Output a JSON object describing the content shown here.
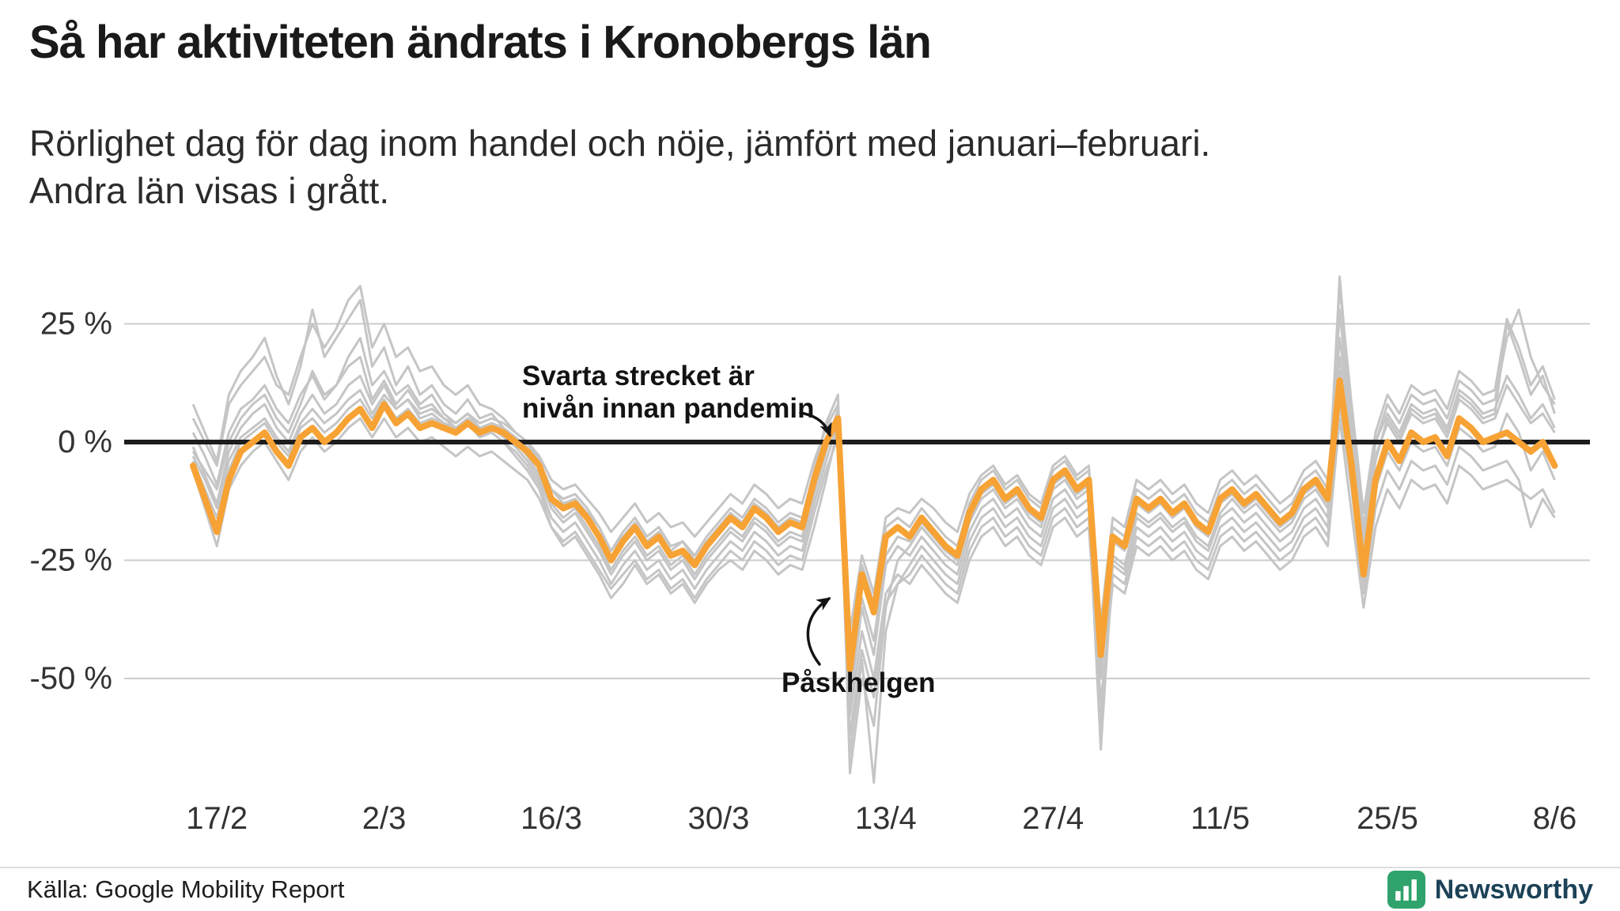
{
  "footer": {
    "source": "Källa: Google Mobility Report",
    "brand": "Newsworthy",
    "brand_icon_color": "#2fa36b",
    "brand_text_color": "#1c4257"
  },
  "chart_data": {
    "type": "line",
    "title": "Så har aktiviteten ändrats i Kronobergs län",
    "subtitle": "Rörlighet dag för dag inom handel och nöje, jämfört med januari–februari.\nAndra län visas i grått.",
    "unit": "%",
    "ylim": [
      -75,
      35
    ],
    "grid": "horizontal-only",
    "legend": "none",
    "annotations": {
      "black_line": "Svarta strecket är\nnivån innan pandemin",
      "easter": "Påskhelgen"
    },
    "colors": {
      "grid": "#cccccc",
      "baseline": "#1d1d1d"
    },
    "baseline": {
      "value": 0
    },
    "y_ticks": [
      {
        "label": "25 %",
        "value": 25
      },
      {
        "label": "0 %",
        "value": 0
      },
      {
        "label": "-25 %",
        "value": -25
      },
      {
        "label": "-50 %",
        "value": -50
      }
    ],
    "x_ticks": [
      {
        "label": "17/2",
        "index": 2
      },
      {
        "label": "2/3",
        "index": 16
      },
      {
        "label": "16/3",
        "index": 30
      },
      {
        "label": "30/3",
        "index": 44
      },
      {
        "label": "13/4",
        "index": 58
      },
      {
        "label": "27/4",
        "index": 72
      },
      {
        "label": "11/5",
        "index": 86
      },
      {
        "label": "25/5",
        "index": 100
      },
      {
        "label": "8/6",
        "index": 114
      }
    ],
    "highlight_series": {
      "name": "Kronobergs län",
      "color": "#f7a234",
      "values": [
        -5,
        -12,
        -19,
        -8,
        -2,
        0,
        2,
        -2,
        -5,
        1,
        3,
        0,
        2,
        5,
        7,
        3,
        8,
        4,
        6,
        3,
        4,
        3,
        2,
        4,
        2,
        3,
        2,
        0,
        -2,
        -5,
        -12,
        -14,
        -13,
        -16,
        -20,
        -25,
        -21,
        -18,
        -22,
        -20,
        -24,
        -23,
        -26,
        -22,
        -19,
        -16,
        -18,
        -14,
        -16,
        -19,
        -17,
        -18,
        -8,
        0,
        5,
        -48,
        -28,
        -36,
        -20,
        -18,
        -20,
        -16,
        -19,
        -22,
        -24,
        -15,
        -10,
        -8,
        -12,
        -10,
        -14,
        -16,
        -8,
        -6,
        -10,
        -8,
        -45,
        -20,
        -22,
        -12,
        -14,
        -12,
        -15,
        -13,
        -17,
        -19,
        -12,
        -10,
        -13,
        -11,
        -14,
        -17,
        -15,
        -10,
        -8,
        -12,
        13,
        -5,
        -28,
        -8,
        0,
        -4,
        2,
        0,
        1,
        -3,
        5,
        3,
        0,
        1,
        2,
        0,
        -2,
        0,
        -5
      ]
    },
    "background_series": {
      "name": "Andra län (visas i grått)",
      "color": "#c5c5c5",
      "series": [
        [
          -2,
          -6,
          -10,
          0,
          5,
          8,
          10,
          5,
          2,
          8,
          15,
          10,
          12,
          18,
          22,
          12,
          15,
          10,
          12,
          8,
          10,
          6,
          4,
          6,
          3,
          2,
          0,
          -3,
          -6,
          -10,
          -18,
          -22,
          -20,
          -24,
          -28,
          -33,
          -30,
          -26,
          -30,
          -28,
          -32,
          -30,
          -34,
          -30,
          -27,
          -25,
          -27,
          -23,
          -25,
          -28,
          -26,
          -27,
          -18,
          -8,
          3,
          -58,
          -40,
          -50,
          -32,
          -28,
          -30,
          -26,
          -29,
          -32,
          -34,
          -25,
          -20,
          -18,
          -22,
          -20,
          -24,
          -26,
          -18,
          -16,
          -20,
          -18,
          -55,
          -30,
          -32,
          -22,
          -24,
          -22,
          -25,
          -23,
          -27,
          -29,
          -22,
          -20,
          -23,
          -21,
          -24,
          -27,
          -25,
          -20,
          -18,
          -22,
          5,
          -15,
          -35,
          -18,
          -10,
          -14,
          -8,
          -10,
          -9,
          -13,
          -5,
          -7,
          -10,
          -9,
          -8,
          -10,
          -12,
          -10,
          -15
        ],
        [
          5,
          0,
          -5,
          8,
          12,
          15,
          18,
          12,
          10,
          18,
          25,
          20,
          24,
          30,
          33,
          20,
          25,
          18,
          20,
          15,
          16,
          12,
          10,
          12,
          8,
          7,
          5,
          2,
          0,
          -4,
          -10,
          -12,
          -11,
          -14,
          -18,
          -23,
          -19,
          -16,
          -20,
          -18,
          -22,
          -21,
          -24,
          -20,
          -17,
          -14,
          -16,
          -12,
          -14,
          -17,
          -15,
          -16,
          -6,
          4,
          10,
          -70,
          -50,
          -60,
          -35,
          -25,
          -22,
          -18,
          -21,
          -24,
          -26,
          -17,
          -12,
          -10,
          -14,
          -12,
          -16,
          -18,
          -10,
          -8,
          -12,
          -10,
          -60,
          -25,
          -27,
          -15,
          -17,
          -15,
          -18,
          -16,
          -20,
          -22,
          -15,
          -12,
          -15,
          -13,
          -16,
          -19,
          -17,
          -12,
          -10,
          -14,
          35,
          5,
          -20,
          0,
          8,
          4,
          10,
          8,
          9,
          5,
          13,
          11,
          8,
          9,
          22,
          28,
          18,
          12,
          8
        ],
        [
          -3,
          -8,
          -14,
          -4,
          1,
          3,
          5,
          1,
          -2,
          4,
          7,
          4,
          6,
          9,
          11,
          6,
          10,
          7,
          9,
          6,
          7,
          5,
          4,
          6,
          4,
          5,
          4,
          2,
          0,
          -3,
          -8,
          -10,
          -9,
          -12,
          -15,
          -19,
          -16,
          -13,
          -17,
          -15,
          -18,
          -17,
          -20,
          -17,
          -14,
          -11,
          -13,
          -9,
          -11,
          -14,
          -12,
          -13,
          -4,
          3,
          8,
          -40,
          -24,
          -32,
          -16,
          -14,
          -15,
          -12,
          -14,
          -17,
          -19,
          -11,
          -7,
          -5,
          -9,
          -7,
          -11,
          -13,
          -5,
          -3,
          -7,
          -5,
          -38,
          -16,
          -18,
          -8,
          -10,
          -8,
          -11,
          -9,
          -13,
          -15,
          -8,
          -6,
          -9,
          -7,
          -10,
          -13,
          -11,
          -6,
          -4,
          -8,
          18,
          0,
          -22,
          -3,
          4,
          0,
          6,
          4,
          5,
          1,
          9,
          7,
          4,
          5,
          12,
          8,
          4,
          6,
          2
        ],
        [
          8,
          2,
          -4,
          10,
          15,
          18,
          22,
          14,
          8,
          16,
          28,
          18,
          22,
          26,
          30,
          16,
          20,
          12,
          16,
          10,
          12,
          8,
          6,
          9,
          5,
          6,
          3,
          0,
          -3,
          -7,
          -13,
          -16,
          -14,
          -18,
          -22,
          -27,
          -23,
          -20,
          -24,
          -22,
          -26,
          -24,
          -28,
          -24,
          -21,
          -18,
          -20,
          -16,
          -18,
          -21,
          -19,
          -20,
          -10,
          -1,
          7,
          -55,
          -35,
          -45,
          -26,
          -22,
          -24,
          -20,
          -23,
          -26,
          -28,
          -19,
          -14,
          -12,
          -16,
          -14,
          -18,
          -20,
          -12,
          -10,
          -14,
          -12,
          -50,
          -24,
          -26,
          -16,
          -18,
          -16,
          -19,
          -17,
          -21,
          -23,
          -16,
          -14,
          -17,
          -15,
          -18,
          -21,
          -19,
          -14,
          -12,
          -16,
          28,
          2,
          -24,
          -4,
          5,
          1,
          7,
          5,
          6,
          2,
          10,
          8,
          5,
          6,
          25,
          18,
          10,
          14,
          6
        ],
        [
          -6,
          -14,
          -22,
          -10,
          -5,
          -2,
          0,
          -4,
          -8,
          -2,
          1,
          -2,
          0,
          3,
          5,
          1,
          5,
          1,
          3,
          0,
          1,
          -1,
          -3,
          -1,
          -3,
          -2,
          -4,
          -6,
          -8,
          -12,
          -18,
          -21,
          -19,
          -23,
          -27,
          -31,
          -28,
          -25,
          -29,
          -27,
          -31,
          -29,
          -33,
          -29,
          -26,
          -23,
          -25,
          -21,
          -23,
          -26,
          -24,
          -25,
          -15,
          -6,
          1,
          -62,
          -44,
          -54,
          -34,
          -30,
          -28,
          -24,
          -27,
          -30,
          -32,
          -23,
          -18,
          -16,
          -20,
          -18,
          -22,
          -24,
          -16,
          -14,
          -18,
          -16,
          -60,
          -28,
          -30,
          -20,
          -22,
          -20,
          -23,
          -21,
          -25,
          -27,
          -20,
          -18,
          -21,
          -19,
          -22,
          -25,
          -23,
          -18,
          -16,
          -20,
          8,
          -10,
          -32,
          -14,
          -6,
          -10,
          -4,
          -6,
          -5,
          -9,
          -1,
          -3,
          -6,
          -5,
          -4,
          -8,
          -18,
          -12,
          -16
        ],
        [
          2,
          -3,
          -9,
          2,
          7,
          9,
          12,
          7,
          4,
          10,
          14,
          9,
          12,
          16,
          18,
          9,
          13,
          8,
          11,
          7,
          8,
          5,
          3,
          5,
          2,
          3,
          1,
          -1,
          -4,
          -8,
          -14,
          -17,
          -15,
          -19,
          -23,
          -28,
          -24,
          -21,
          -25,
          -23,
          -27,
          -25,
          -29,
          -25,
          -22,
          -19,
          -21,
          -17,
          -19,
          -22,
          -20,
          -21,
          -11,
          -2,
          6,
          -52,
          -33,
          -42,
          -24,
          -20,
          -21,
          -17,
          -20,
          -23,
          -25,
          -16,
          -11,
          -9,
          -13,
          -11,
          -15,
          -17,
          -9,
          -7,
          -11,
          -9,
          -48,
          -21,
          -23,
          -13,
          -15,
          -13,
          -16,
          -14,
          -18,
          -20,
          -13,
          -11,
          -14,
          -12,
          -15,
          -18,
          -16,
          -11,
          -9,
          -13,
          33,
          8,
          -15,
          2,
          10,
          6,
          12,
          10,
          11,
          7,
          15,
          13,
          10,
          11,
          26,
          20,
          12,
          16,
          9
        ],
        [
          -4,
          -10,
          -16,
          -6,
          0,
          2,
          4,
          0,
          -3,
          3,
          5,
          2,
          4,
          7,
          9,
          5,
          9,
          5,
          7,
          4,
          5,
          4,
          3,
          5,
          3,
          4,
          3,
          1,
          -1,
          -4,
          -10,
          -13,
          -12,
          -15,
          -18,
          -23,
          -20,
          -17,
          -21,
          -19,
          -23,
          -21,
          -25,
          -21,
          -18,
          -15,
          -17,
          -13,
          -15,
          -18,
          -16,
          -17,
          -7,
          1,
          6,
          -45,
          -26,
          -34,
          -18,
          -16,
          -18,
          -14,
          -17,
          -20,
          -22,
          -13,
          -8,
          -6,
          -10,
          -8,
          -12,
          -14,
          -6,
          -4,
          -8,
          -6,
          -42,
          -18,
          -20,
          -10,
          -12,
          -10,
          -13,
          -11,
          -15,
          -17,
          -10,
          -8,
          -11,
          -9,
          -12,
          -15,
          -13,
          -8,
          -6,
          -10,
          22,
          3,
          -18,
          0,
          6,
          2,
          8,
          6,
          7,
          3,
          11,
          9,
          6,
          7,
          14,
          10,
          5,
          8,
          3
        ],
        [
          -1,
          -7,
          -13,
          -2,
          3,
          6,
          8,
          3,
          0,
          6,
          10,
          6,
          8,
          12,
          14,
          8,
          12,
          7,
          9,
          5,
          6,
          4,
          2,
          4,
          1,
          2,
          0,
          -2,
          -5,
          -9,
          -16,
          -19,
          -17,
          -21,
          -25,
          -30,
          -26,
          -23,
          -27,
          -25,
          -29,
          -27,
          -31,
          -27,
          -24,
          -21,
          -23,
          -19,
          -21,
          -24,
          -22,
          -23,
          -13,
          -4,
          4,
          -66,
          -46,
          -72,
          -40,
          -30,
          -26,
          -22,
          -25,
          -28,
          -30,
          -21,
          -16,
          -14,
          -18,
          -16,
          -20,
          -22,
          -14,
          -12,
          -16,
          -14,
          -65,
          -26,
          -28,
          -18,
          -20,
          -18,
          -21,
          -19,
          -23,
          -25,
          -18,
          -16,
          -19,
          -17,
          -20,
          -23,
          -21,
          -16,
          -14,
          -18,
          15,
          -8,
          -30,
          -10,
          -2,
          -6,
          0,
          -2,
          -1,
          -5,
          3,
          1,
          -2,
          -1,
          6,
          2,
          -6,
          -2,
          -8
        ]
      ]
    }
  }
}
